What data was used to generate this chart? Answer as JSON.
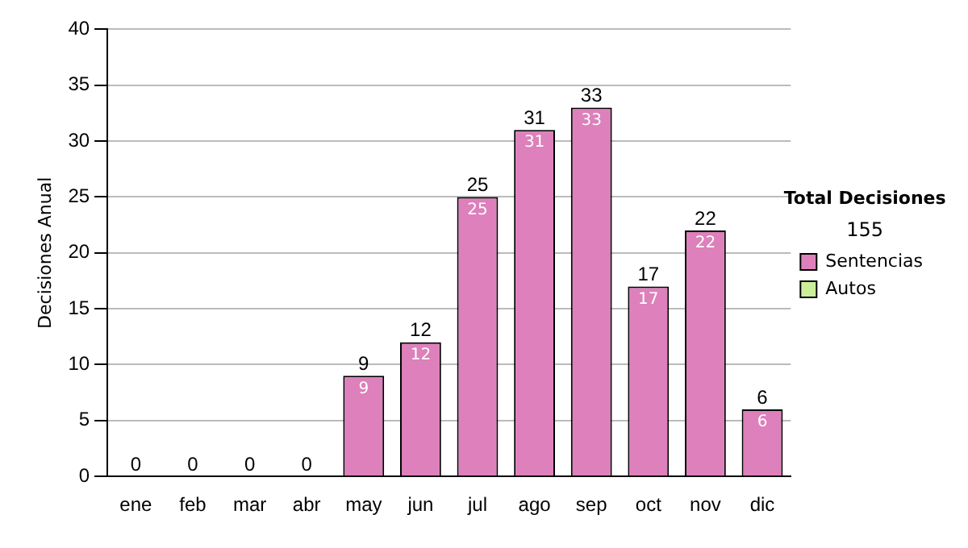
{
  "chart_data": {
    "type": "bar",
    "ylabel": "Decisiones Anual",
    "categories": [
      "ene",
      "feb",
      "mar",
      "abr",
      "may",
      "jun",
      "jul",
      "ago",
      "sep",
      "oct",
      "nov",
      "dic"
    ],
    "series": [
      {
        "name": "Sentencias",
        "color": "#dd80bb",
        "values": [
          0,
          0,
          0,
          0,
          9,
          12,
          25,
          31,
          33,
          17,
          22,
          6
        ],
        "value_labels": [
          null,
          null,
          null,
          null,
          "9",
          "12",
          "25",
          "31",
          "33",
          "17",
          "22",
          "6"
        ]
      },
      {
        "name": "Autos",
        "color": "#ccee99",
        "values": [
          0,
          0,
          0,
          0,
          0,
          0,
          0,
          0,
          0,
          0,
          0,
          0
        ]
      }
    ],
    "stacked": true,
    "totals": [
      "0",
      "0",
      "0",
      "0",
      "9",
      "12",
      "25",
      "31",
      "33",
      "17",
      "22",
      "6"
    ],
    "ylim": [
      0,
      40
    ],
    "yticks": [
      0,
      5,
      10,
      15,
      20,
      25,
      30,
      35,
      40
    ],
    "grid": "y",
    "legend": "right",
    "annotations": [
      "Total Decisiones",
      "155"
    ]
  }
}
